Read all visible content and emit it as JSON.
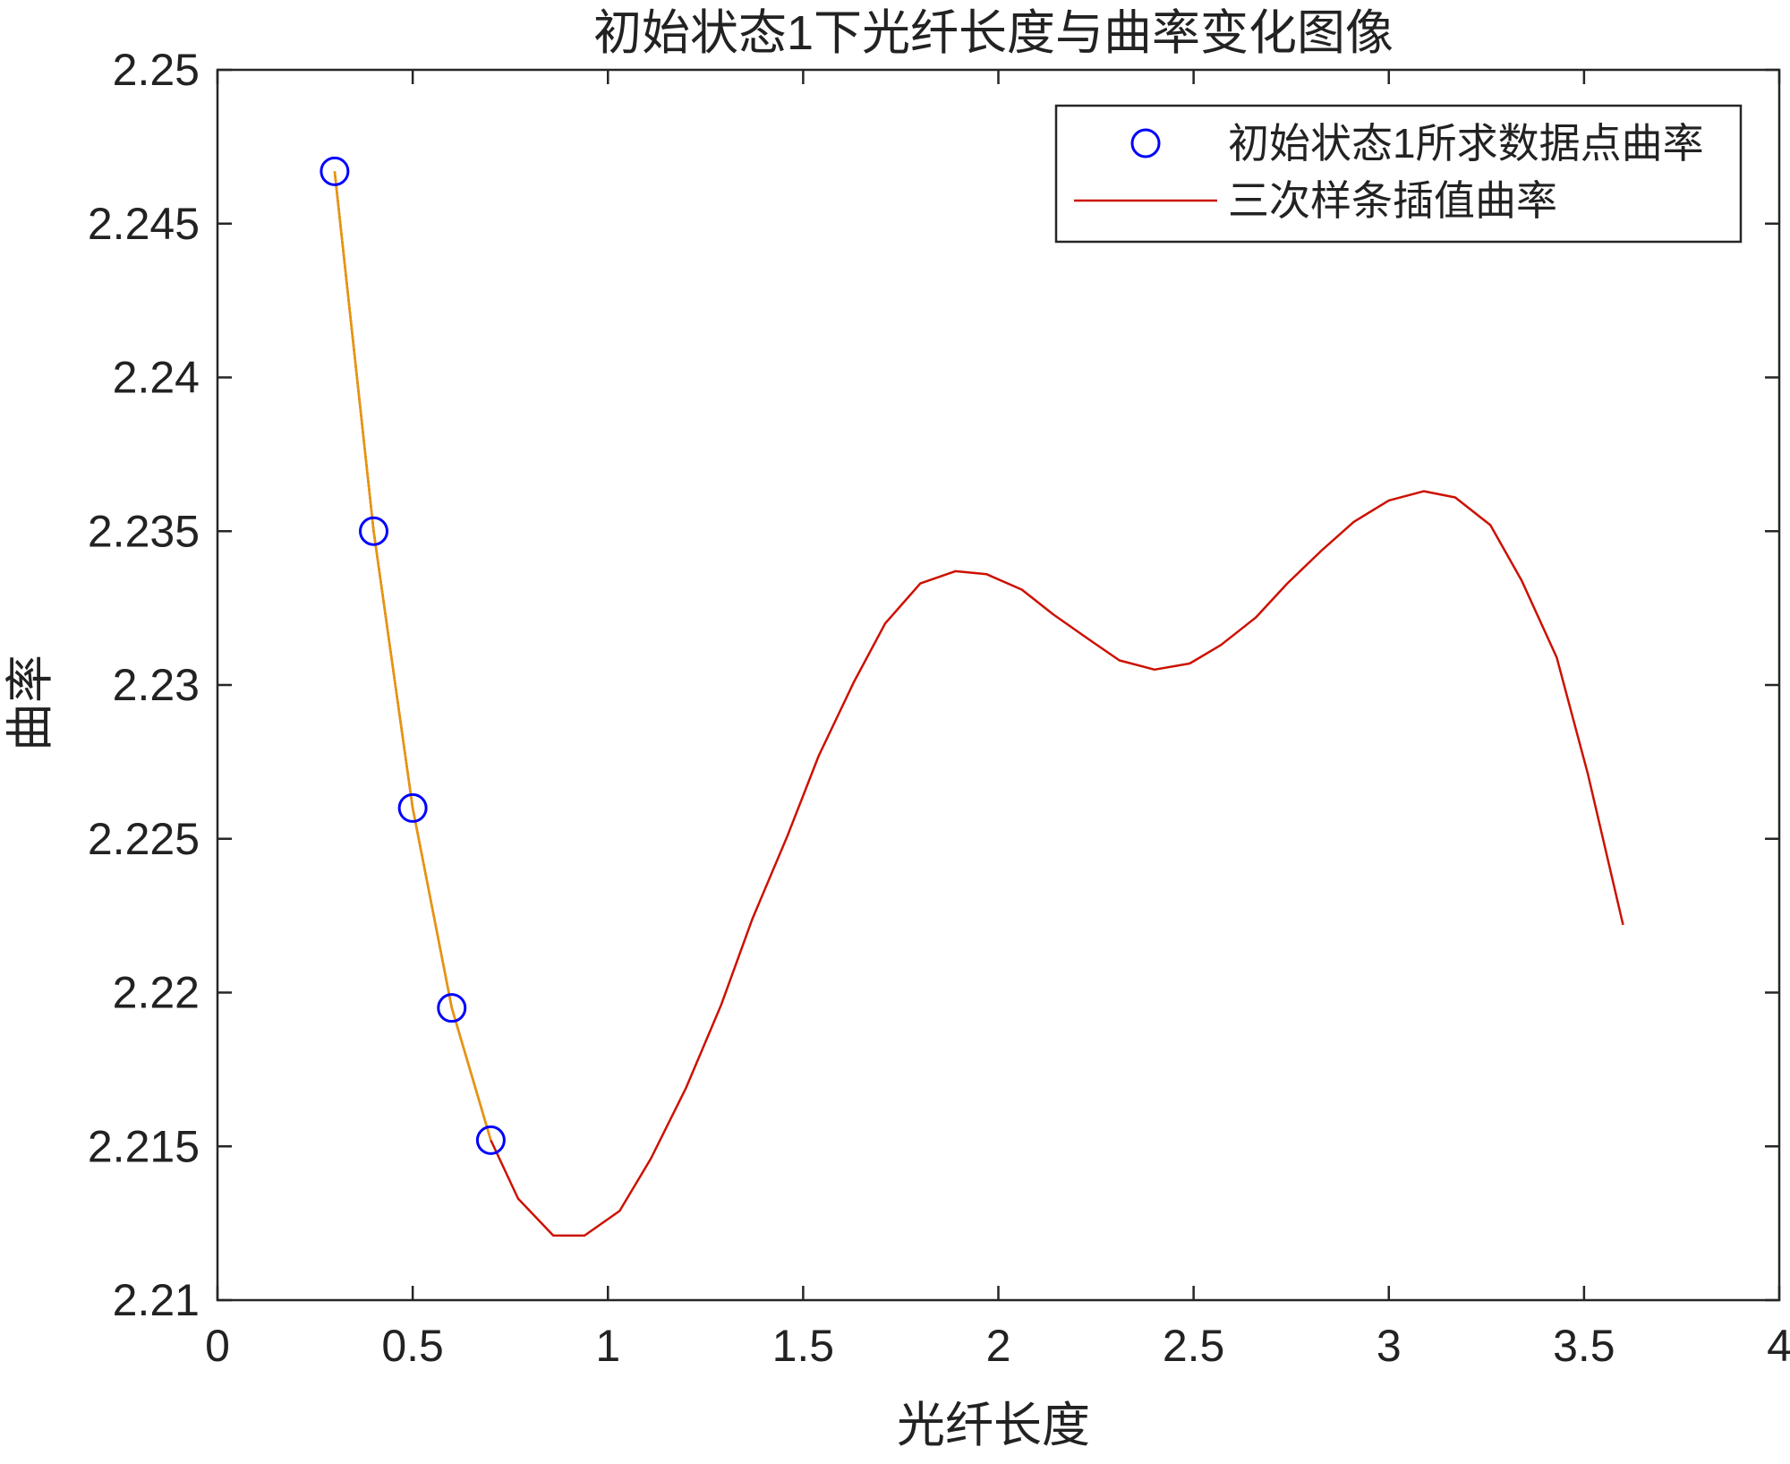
{
  "chart_data": {
    "type": "line",
    "title": "初始状态1下光纤长度与曲率变化图像",
    "xlabel": "光纤长度",
    "ylabel": "曲率",
    "xlim": [
      0,
      4
    ],
    "ylim": [
      2.21,
      2.25
    ],
    "xticks": [
      0,
      0.5,
      1,
      1.5,
      2,
      2.5,
      3,
      3.5,
      4
    ],
    "xtick_labels": [
      "0",
      "0.5",
      "1",
      "1.5",
      "2",
      "2.5",
      "3",
      "3.5",
      "4"
    ],
    "yticks": [
      2.21,
      2.215,
      2.22,
      2.225,
      2.23,
      2.235,
      2.24,
      2.245,
      2.25
    ],
    "ytick_labels": [
      "2.21",
      "2.215",
      "2.22",
      "2.225",
      "2.23",
      "2.235",
      "2.24",
      "2.245",
      "2.25"
    ],
    "grid": false,
    "legend_position": "top-right",
    "series": [
      {
        "name": "初始状态1所求数据点曲率",
        "style": "markers",
        "marker": "circle",
        "color": "#0000ff",
        "x": [
          0.3,
          0.4,
          0.5,
          0.6,
          0.7
        ],
        "y": [
          2.2467,
          2.235,
          2.226,
          2.2195,
          2.2152
        ]
      },
      {
        "name": "三次样条插值曲率",
        "style": "line",
        "color": "#cc1100",
        "x": [
          0.3,
          0.4,
          0.5,
          0.6,
          0.7,
          0.77,
          0.86,
          0.94,
          1.03,
          1.11,
          1.2,
          1.29,
          1.37,
          1.46,
          1.54,
          1.63,
          1.71,
          1.8,
          1.89,
          1.97,
          2.06,
          2.14,
          2.23,
          2.31,
          2.4,
          2.49,
          2.57,
          2.66,
          2.74,
          2.83,
          2.91,
          3.0,
          3.09,
          3.17,
          3.26,
          3.34,
          3.43,
          3.51,
          3.6
        ],
        "y": [
          2.2467,
          2.235,
          2.226,
          2.2195,
          2.2152,
          2.2133,
          2.2121,
          2.2121,
          2.2129,
          2.2146,
          2.2169,
          2.2196,
          2.2224,
          2.2251,
          2.2277,
          2.2301,
          2.232,
          2.2333,
          2.2337,
          2.2336,
          2.2331,
          2.2323,
          2.2315,
          2.2308,
          2.2305,
          2.2307,
          2.2313,
          2.2322,
          2.2333,
          2.2344,
          2.2353,
          2.236,
          2.2363,
          2.2361,
          2.2352,
          2.2334,
          2.2309,
          2.2271,
          2.2222
        ]
      },
      {
        "name": "",
        "style": "line",
        "color": "#e6960a",
        "x": [
          0.3,
          0.4,
          0.5,
          0.6,
          0.7
        ],
        "y": [
          2.2467,
          2.235,
          2.226,
          2.2195,
          2.2152
        ]
      }
    ]
  }
}
